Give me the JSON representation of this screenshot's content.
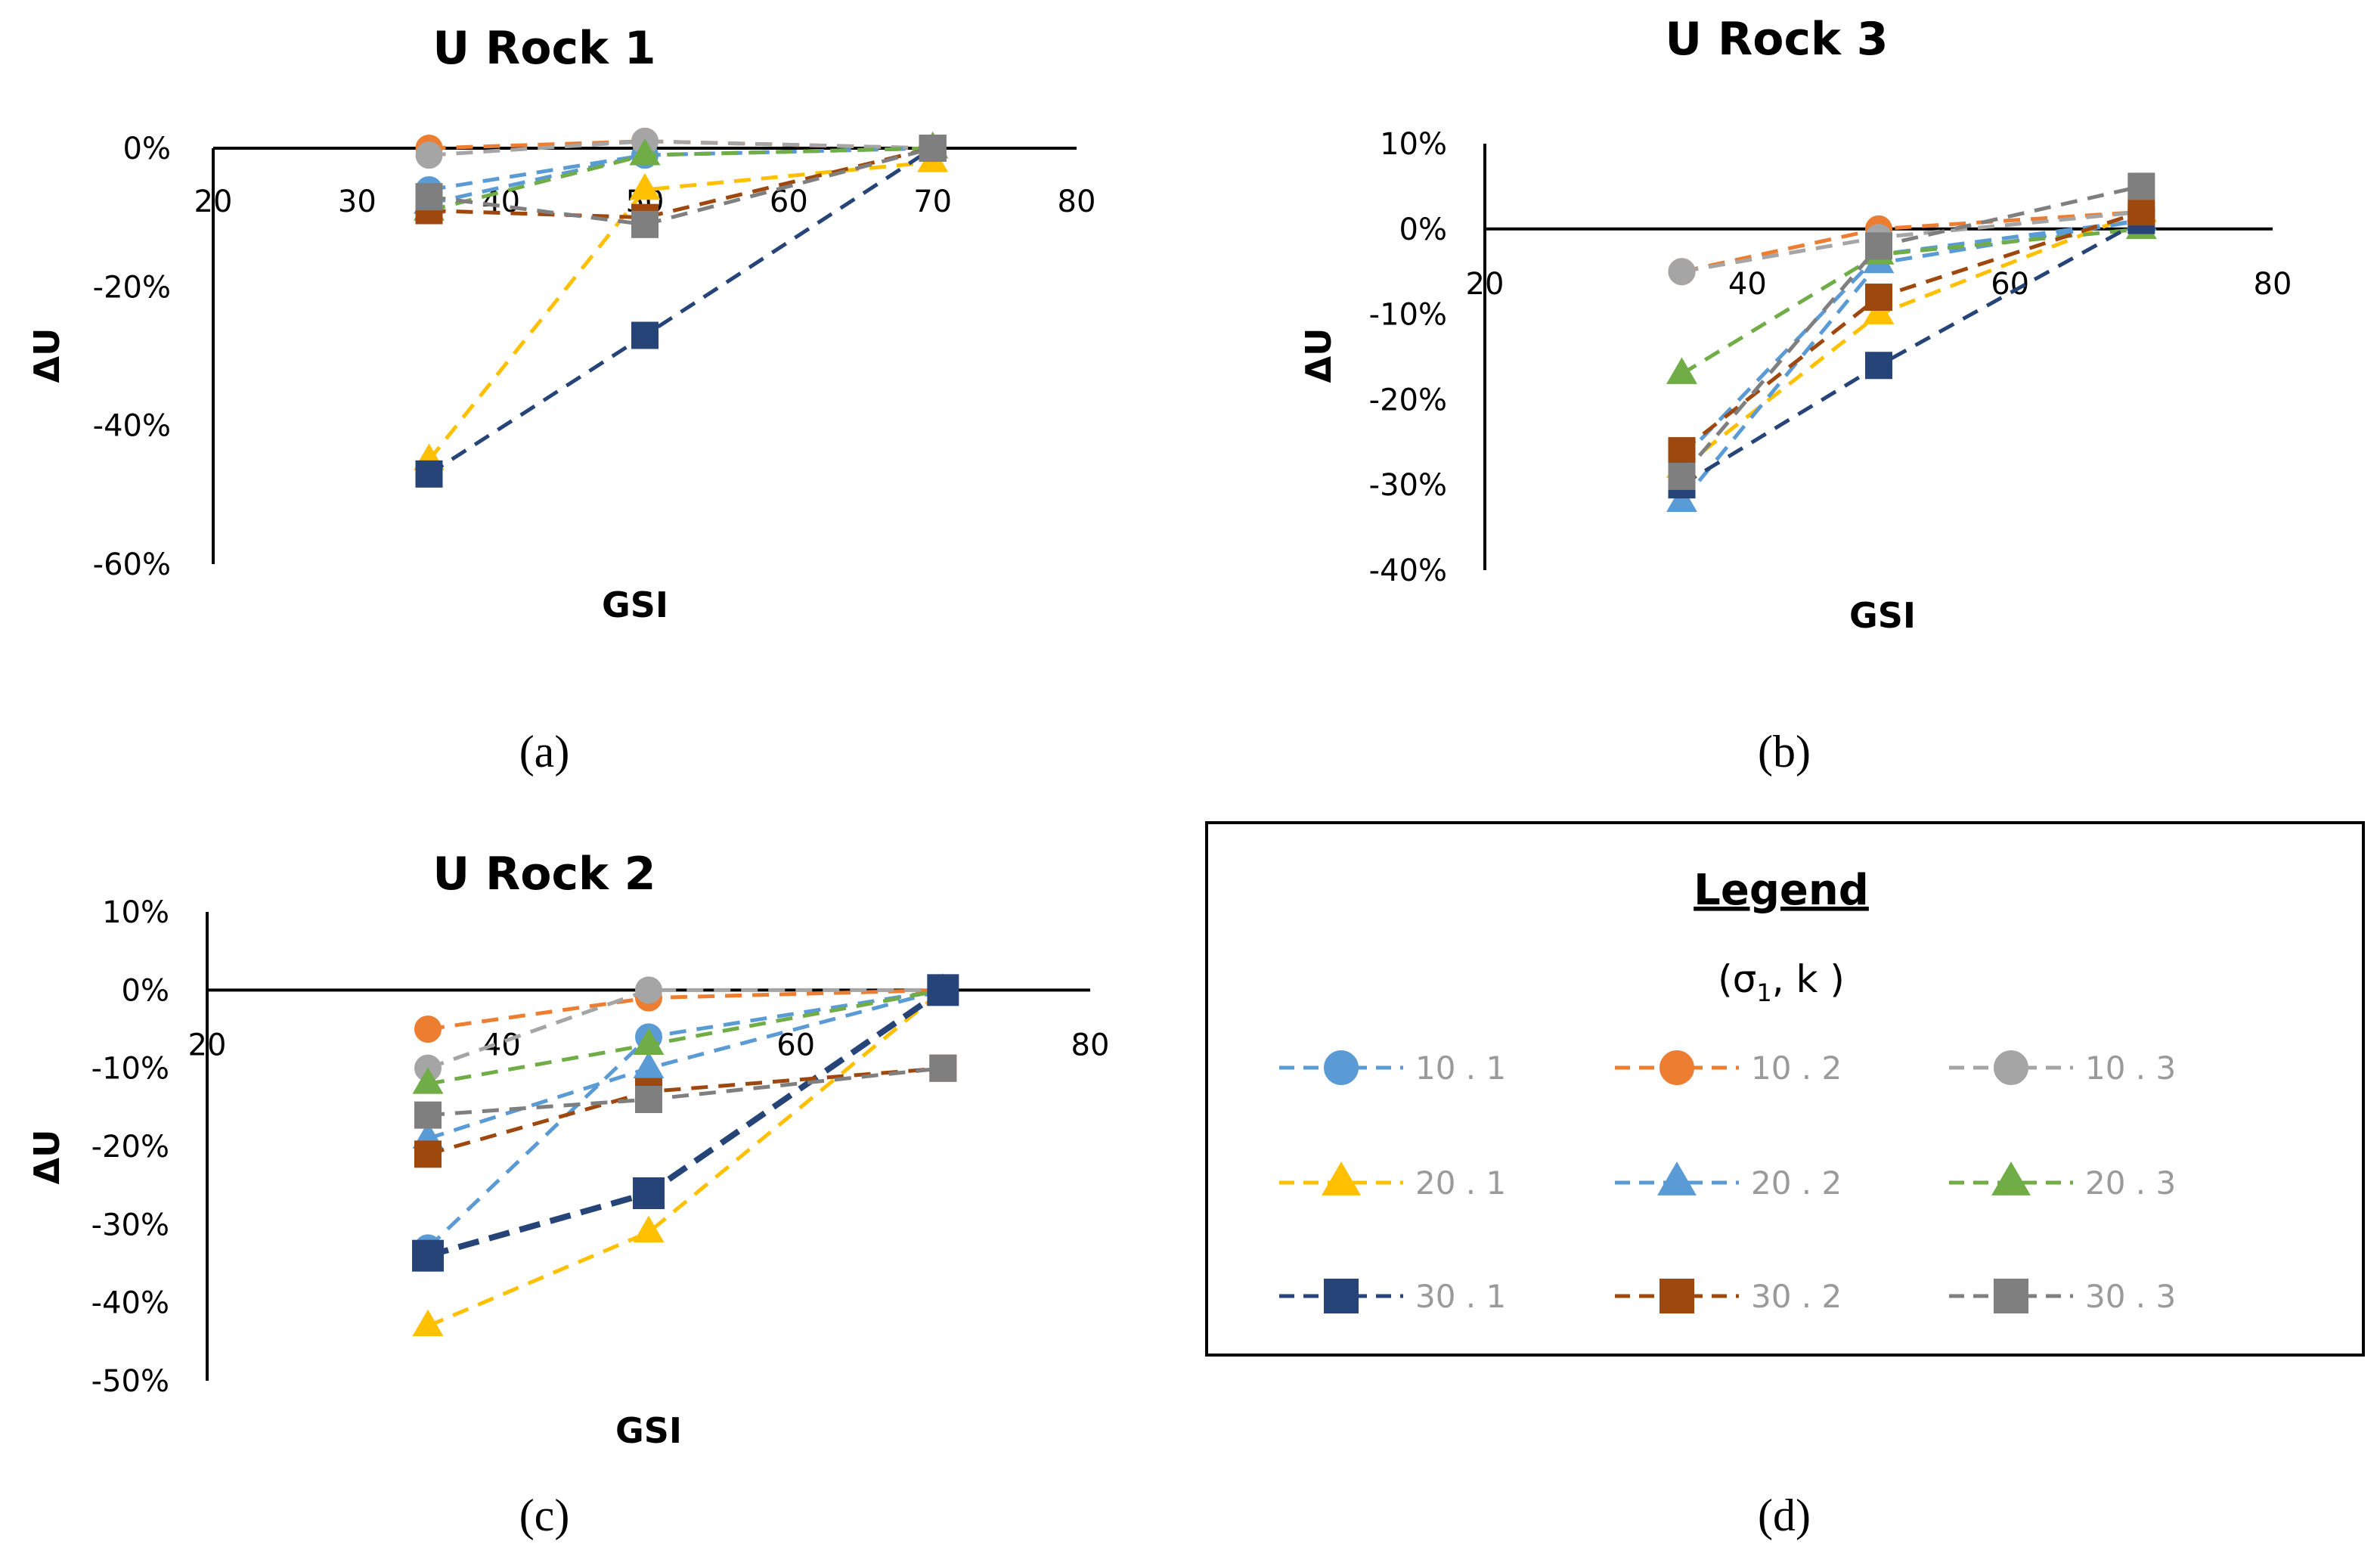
{
  "series_styles": [
    {
      "name": "10 . 1",
      "color": "#5B9BD5",
      "marker": "circle",
      "thick": false
    },
    {
      "name": "10 . 2",
      "color": "#ED7D31",
      "marker": "circle",
      "thick": false
    },
    {
      "name": "10 . 3",
      "color": "#A5A5A5",
      "marker": "circle",
      "thick": false
    },
    {
      "name": "20 . 1",
      "color": "#FFC000",
      "marker": "triangle",
      "thick": false
    },
    {
      "name": "20 . 2",
      "color": "#5B9BD5",
      "marker": "triangle",
      "thick": false
    },
    {
      "name": "20 . 3",
      "color": "#70AD47",
      "marker": "triangle",
      "thick": false
    },
    {
      "name": "30 . 1",
      "color": "#264478",
      "marker": "square",
      "thick": false
    },
    {
      "name": "30 . 2",
      "color": "#9E480E",
      "marker": "square",
      "thick": false
    },
    {
      "name": "30 . 3",
      "color": "#7F7F7F",
      "marker": "square",
      "thick": false
    }
  ],
  "chart_data": [
    {
      "type": "line",
      "title": "U Rock 1",
      "caption": "(a)",
      "xlabel": "GSI",
      "ylabel": "ΔU",
      "xlim": [
        20,
        80
      ],
      "ylim": [
        -60,
        0
      ],
      "xticks": [
        "20",
        "30",
        "40",
        "50",
        "60",
        "70",
        "80"
      ],
      "yticks": [
        "0%",
        "-20%",
        "-40%",
        "-60%"
      ],
      "x": [
        35,
        50,
        70
      ],
      "series": [
        {
          "name": "10 . 1",
          "values": [
            -6,
            -1,
            0
          ]
        },
        {
          "name": "10 . 2",
          "values": [
            0,
            1,
            0
          ]
        },
        {
          "name": "10 . 3",
          "values": [
            -1,
            1,
            0
          ]
        },
        {
          "name": "20 . 1",
          "values": [
            -45,
            -6,
            -2
          ]
        },
        {
          "name": "20 . 2",
          "values": [
            -8,
            -1,
            0
          ]
        },
        {
          "name": "20 . 3",
          "values": [
            -9,
            -1,
            0
          ]
        },
        {
          "name": "30 . 1",
          "values": [
            -47,
            -27,
            0
          ]
        },
        {
          "name": "30 . 2",
          "values": [
            -9,
            -10,
            0
          ]
        },
        {
          "name": "30 . 3",
          "values": [
            -7,
            -11,
            0
          ]
        }
      ]
    },
    {
      "type": "line",
      "title": "U Rock 3",
      "caption": "(b)",
      "xlabel": "GSI",
      "ylabel": "ΔU",
      "xlim": [
        20,
        80
      ],
      "ylim": [
        -40,
        10
      ],
      "xticks": [
        "20",
        "40",
        "60",
        "80"
      ],
      "yticks": [
        "10%",
        "0%",
        "-10%",
        "-20%",
        "-30%",
        "-40%"
      ],
      "x": [
        35,
        50,
        70
      ],
      "series": [
        {
          "name": "10 . 1",
          "values": [
            -27,
            -3,
            1
          ]
        },
        {
          "name": "10 . 2",
          "values": [
            -5,
            0,
            2
          ]
        },
        {
          "name": "10 . 3",
          "values": [
            -5,
            -1,
            2
          ]
        },
        {
          "name": "20 . 1",
          "values": [
            -28,
            -10,
            2
          ]
        },
        {
          "name": "20 . 2",
          "values": [
            -32,
            -4,
            1
          ]
        },
        {
          "name": "20 . 3",
          "values": [
            -17,
            -3,
            0
          ]
        },
        {
          "name": "30 . 1",
          "values": [
            -30,
            -16,
            1
          ]
        },
        {
          "name": "30 . 2",
          "values": [
            -26,
            -8,
            2
          ]
        },
        {
          "name": "30 . 3",
          "values": [
            -29,
            -2,
            5
          ]
        }
      ]
    },
    {
      "type": "line",
      "title": "U Rock 2",
      "caption": "(c)",
      "xlabel": "GSI",
      "ylabel": "ΔU",
      "xlim": [
        20,
        80
      ],
      "ylim": [
        -50,
        10
      ],
      "xticks": [
        "20",
        "40",
        "60",
        "80"
      ],
      "yticks": [
        "10%",
        "0%",
        "-10%",
        "-20%",
        "-30%",
        "-40%",
        "-50%"
      ],
      "x": [
        35,
        50,
        70
      ],
      "series": [
        {
          "name": "10 . 1",
          "values": [
            -33,
            -6,
            0
          ]
        },
        {
          "name": "10 . 2",
          "values": [
            -5,
            -1,
            0
          ]
        },
        {
          "name": "10 . 3",
          "values": [
            -10,
            0,
            0
          ]
        },
        {
          "name": "20 . 1",
          "values": [
            -43,
            -31,
            0
          ]
        },
        {
          "name": "20 . 2",
          "values": [
            -19,
            -10,
            0
          ]
        },
        {
          "name": "20 . 3",
          "values": [
            -12,
            -7,
            0
          ]
        },
        {
          "name": "30 . 1",
          "values": [
            -34,
            -26,
            0
          ],
          "thick": true
        },
        {
          "name": "30 . 2",
          "values": [
            -21,
            -13,
            -10
          ]
        },
        {
          "name": "30 . 3",
          "values": [
            -16,
            -14,
            -10
          ]
        }
      ]
    }
  ],
  "legend": {
    "title": "Legend",
    "subtitle": "(σ",
    "subtitle_sub": "1",
    "subtitle_end": ", k )",
    "caption": "(d)",
    "entries": [
      "10 . 1",
      "10 . 2",
      "10 . 3",
      "20 . 1",
      "20 . 2",
      "20 . 3",
      "30 . 1",
      "30 . 2",
      "30 . 3"
    ]
  }
}
